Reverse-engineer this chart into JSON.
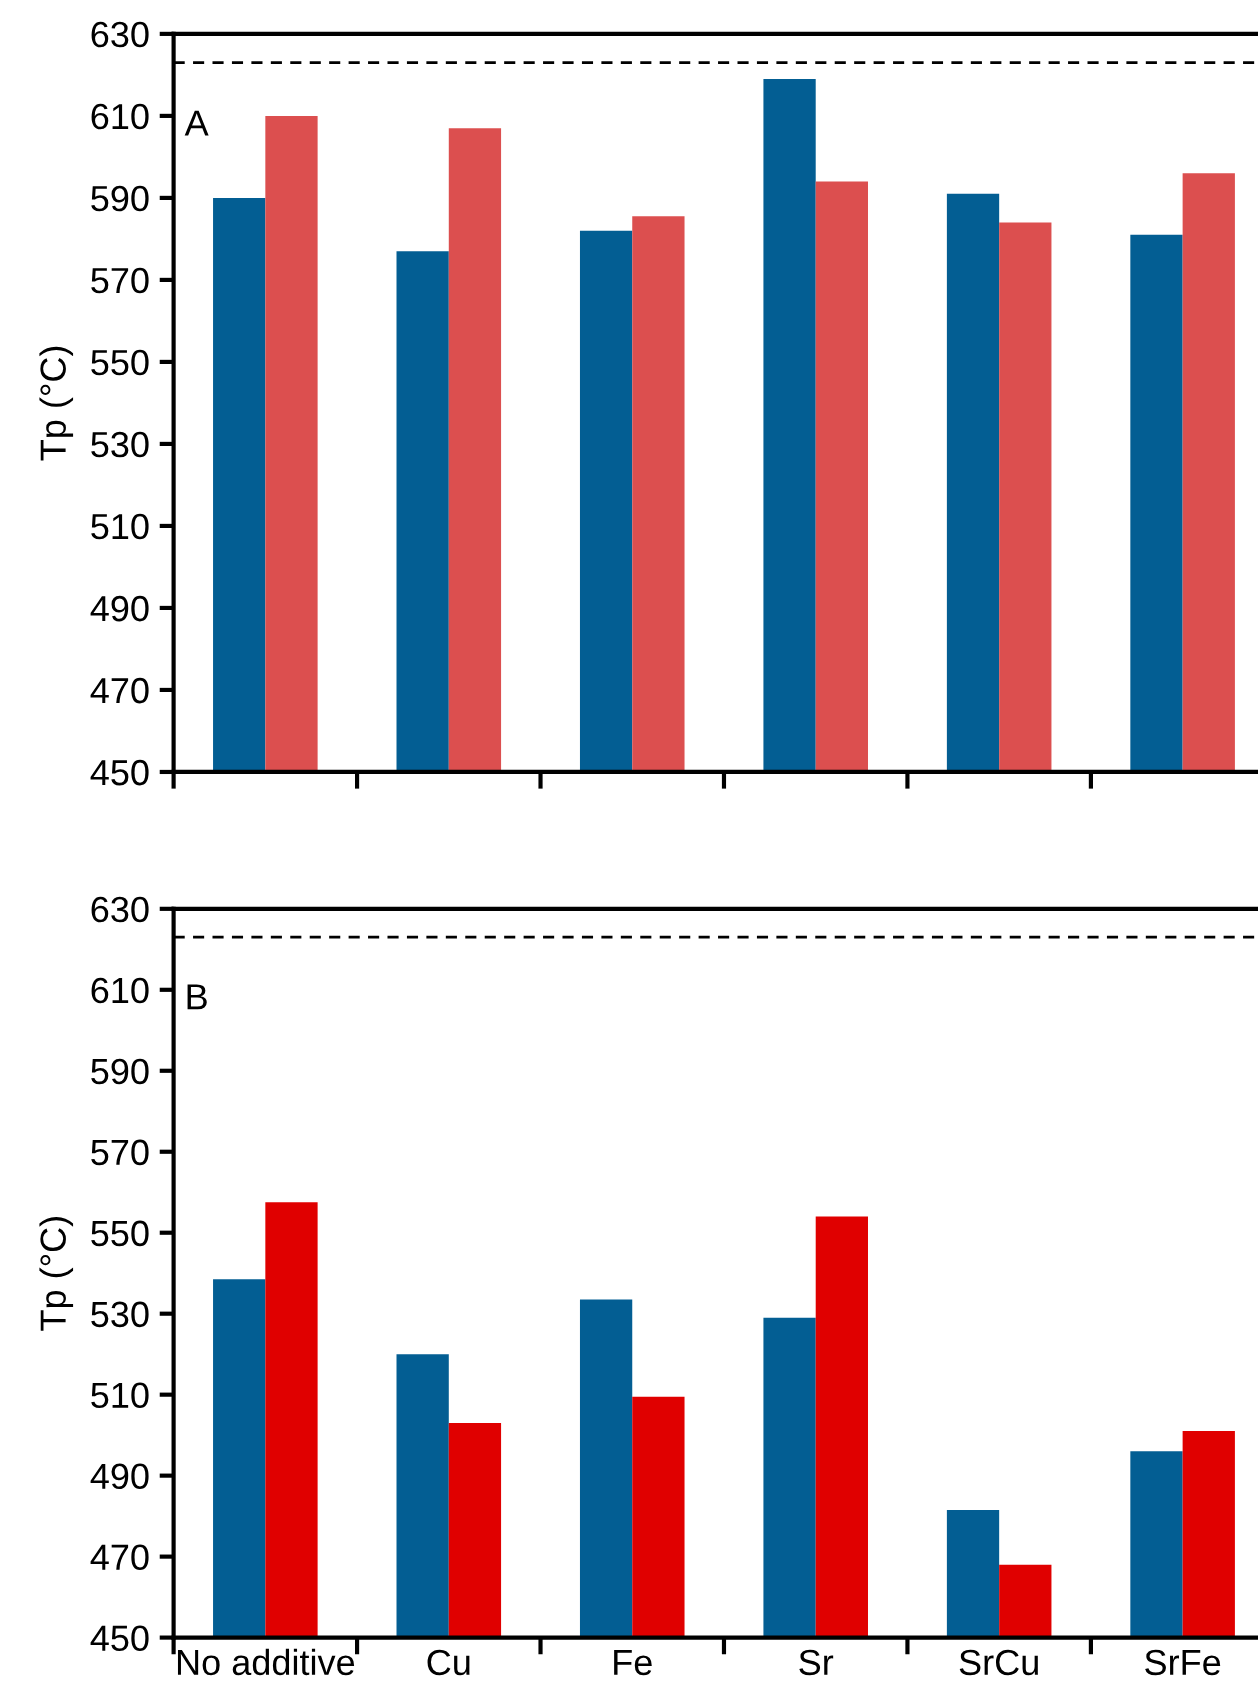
{
  "chart_data": [
    {
      "type": "bar",
      "ylabel": "Tp (°C)",
      "annotations": [
        "A"
      ],
      "categories": [
        null,
        null,
        null,
        null,
        null,
        null
      ],
      "series": [
        {
          "color": "#035e93",
          "values": [
            590,
            577,
            582,
            619,
            591,
            581
          ]
        },
        {
          "color": "#dc4f4f",
          "values": [
            610,
            607,
            585.5,
            594,
            584,
            596
          ]
        }
      ],
      "ylim": [
        450,
        630
      ],
      "yticks": [
        450,
        470,
        490,
        510,
        530,
        550,
        570,
        590,
        610,
        630
      ],
      "tick_labels": "y",
      "grid": false,
      "legend": false,
      "ref_lines": [
        {
          "axis": "y",
          "value": 623,
          "color": "#000000",
          "line_style": "dashed"
        }
      ]
    },
    {
      "type": "bar",
      "ylabel": "Tp (°C)",
      "annotations": [
        "B"
      ],
      "categories": [
        "No additive",
        "Cu",
        "Fe",
        "Sr",
        "SrCu",
        "SrFe"
      ],
      "series": [
        {
          "color": "#035e93",
          "values": [
            538.5,
            520,
            533.5,
            529,
            481.5,
            496
          ]
        },
        {
          "color": "#e00000",
          "values": [
            557.5,
            503,
            509.5,
            554,
            468,
            501
          ]
        }
      ],
      "ylim": [
        450,
        630
      ],
      "yticks": [
        450,
        470,
        490,
        510,
        530,
        550,
        570,
        590,
        610,
        630
      ],
      "grid": false,
      "legend": false,
      "ref_lines": [
        {
          "axis": "y",
          "value": 623,
          "color": "#000000",
          "line_style": "dashed"
        }
      ]
    }
  ]
}
